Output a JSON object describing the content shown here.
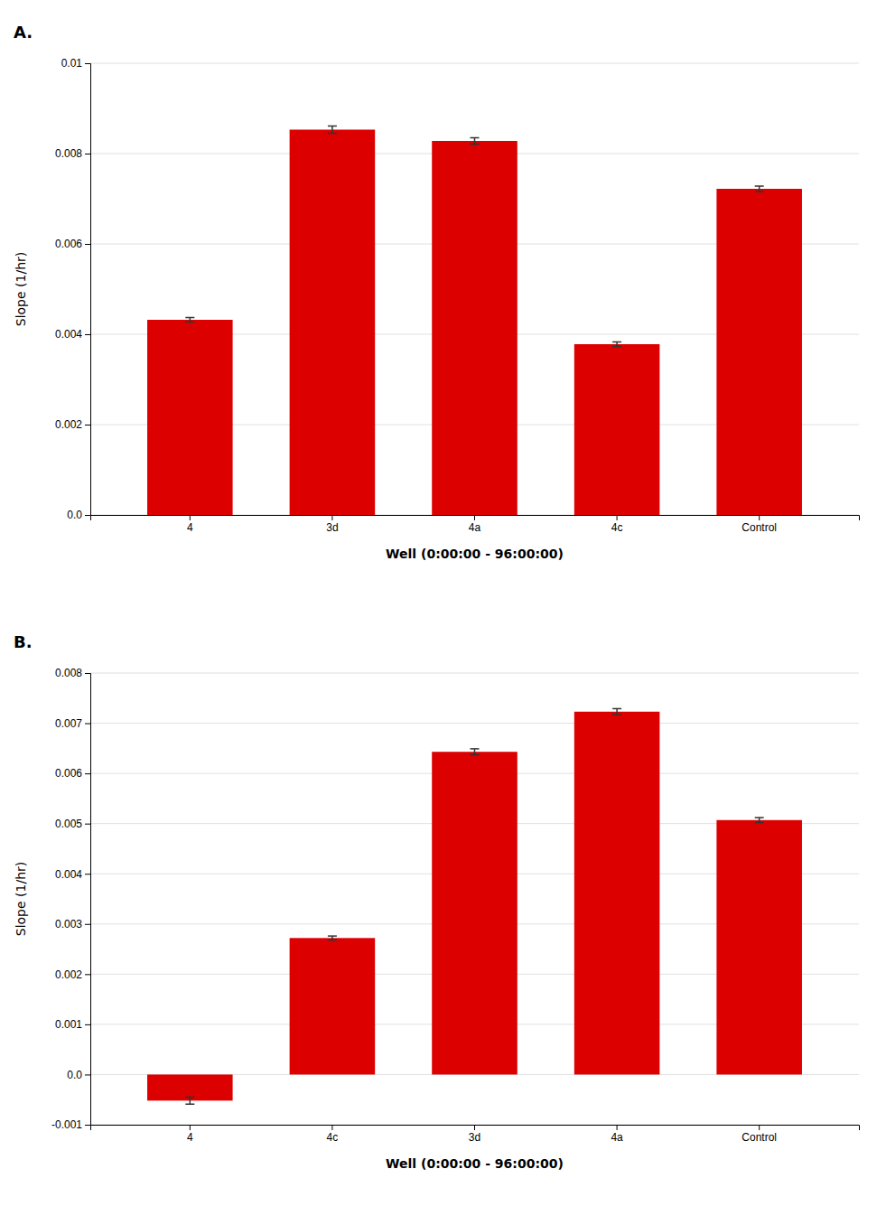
{
  "chart_data": [
    {
      "type": "bar",
      "title": "A.",
      "categories": [
        "4",
        "3d",
        "4a",
        "4c",
        "Control"
      ],
      "values": [
        0.00432,
        0.00853,
        0.00828,
        0.00378,
        0.00722
      ],
      "errors": [
        5e-05,
        8e-05,
        7e-05,
        5e-05,
        6e-05
      ],
      "color": "#dd0000",
      "ylabel": "Slope (1/hr)",
      "xlabel": "Well (0:00:00 - 96:00:00)",
      "ylim": [
        0.0,
        0.01
      ],
      "yticks": [
        {
          "value": 0.0,
          "label": "0.0"
        },
        0.002,
        0.004,
        0.006,
        0.008,
        0.01
      ],
      "grid": true
    },
    {
      "type": "bar",
      "title": "B.",
      "categories": [
        "4",
        "4c",
        "3d",
        "4a",
        "Control"
      ],
      "values": [
        -0.00052,
        0.00272,
        0.00643,
        0.00723,
        0.00507
      ],
      "errors": [
        7e-05,
        4e-05,
        6e-05,
        6e-05,
        5e-05
      ],
      "color": "#dd0000",
      "ylabel": "Slope (1/hr)",
      "xlabel": "Well (0:00:00 - 96:00:00)",
      "ylim": [
        -0.001,
        0.008
      ],
      "yticks": [
        -0.001,
        {
          "value": 0.0,
          "label": "0.0"
        },
        0.001,
        0.002,
        0.003,
        0.004,
        0.005,
        0.006,
        0.007,
        0.008
      ],
      "grid": true
    }
  ]
}
